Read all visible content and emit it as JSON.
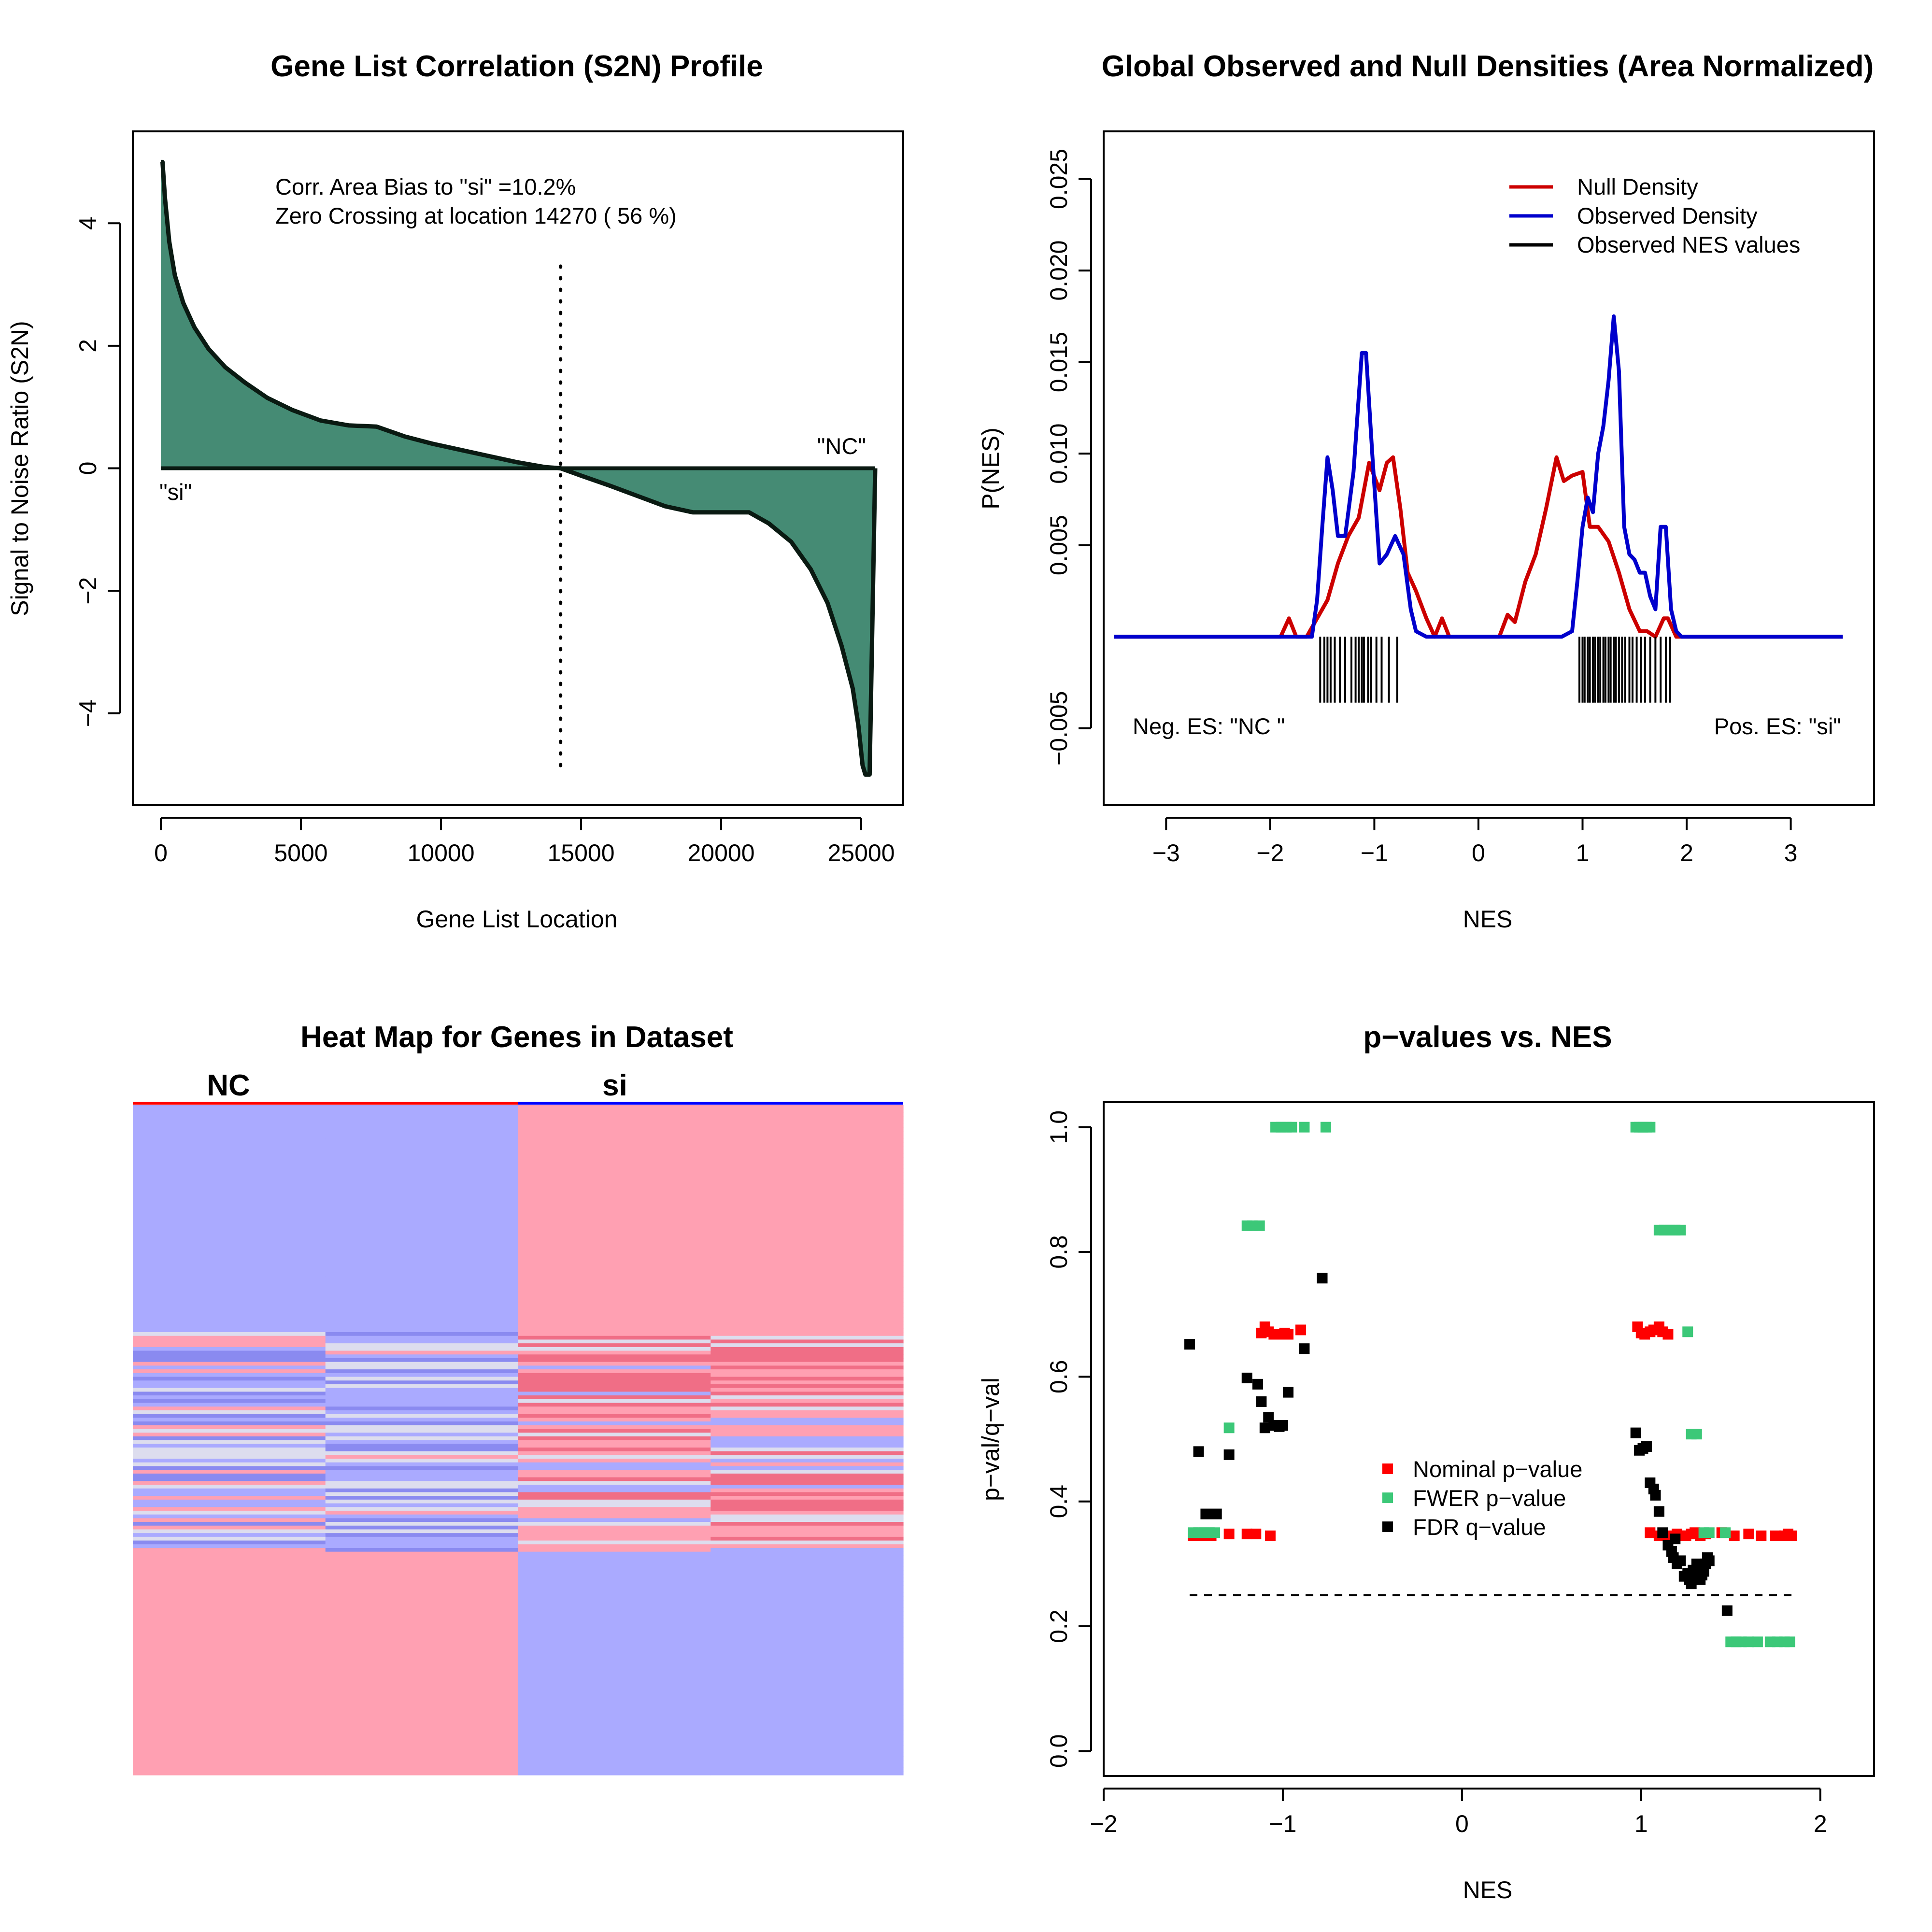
{
  "chart_data": [
    {
      "type": "area",
      "title": "Gene List Correlation (S2N) Profile",
      "xlabel": "Gene List Location",
      "ylabel": "Signal to Noise Ratio (S2N)",
      "xlim": [
        -1000,
        26500
      ],
      "ylim": [
        -5.5,
        5.5
      ],
      "xticks": [
        0,
        5000,
        10000,
        15000,
        20000,
        25000
      ],
      "xtick_labels": [
        "0",
        "5000",
        "10000",
        "15000",
        "20000",
        "25000"
      ],
      "yticks": [
        -4,
        -2,
        0,
        2,
        4
      ],
      "ytick_labels": [
        "−4",
        "−2",
        "0",
        "2",
        "4"
      ],
      "annotations": {
        "bias": "Corr. Area Bias to \"si\" =10.2%",
        "zero_crossing": "Zero Crossing at location  14270  ( 56  %)",
        "left_label": "\"si\"",
        "right_label": "\"NC\""
      },
      "zero_crossing_x": 14270,
      "fill_color": "#458B74",
      "profile": {
        "x": [
          0,
          60,
          150,
          300,
          500,
          800,
          1200,
          1700,
          2300,
          3000,
          3800,
          4700,
          5700,
          6700,
          7700,
          8700,
          9700,
          10700,
          11700,
          12700,
          13700,
          14270,
          15000,
          16000,
          17000,
          18000,
          19000,
          20000,
          21000,
          21700,
          22500,
          23200,
          23800,
          24300,
          24700,
          24900,
          25050,
          25150,
          25250,
          25300,
          25500
        ],
        "y": [
          5.0,
          5.0,
          4.4,
          3.7,
          3.15,
          2.7,
          2.3,
          1.95,
          1.65,
          1.4,
          1.15,
          0.95,
          0.78,
          0.7,
          0.68,
          0.52,
          0.4,
          0.3,
          0.2,
          0.1,
          0.02,
          0.0,
          -0.12,
          -0.28,
          -0.45,
          -0.62,
          -0.72,
          -0.72,
          -0.72,
          -0.9,
          -1.2,
          -1.65,
          -2.2,
          -2.9,
          -3.6,
          -4.2,
          -4.85,
          -5.0,
          -5.0,
          -5.0,
          0.0
        ]
      }
    },
    {
      "type": "line",
      "title": "Global Observed and Null Densities (Area Normalized)",
      "xlabel": "NES",
      "ylabel": "P(NES)",
      "xlim": [
        -3.6,
        3.8
      ],
      "ylim": [
        -0.0092,
        0.0276
      ],
      "xticks": [
        -3,
        -2,
        -1,
        0,
        1,
        2,
        3
      ],
      "xtick_labels": [
        "−3",
        "−2",
        "−1",
        "0",
        "1",
        "2",
        "3"
      ],
      "yticks": [
        -0.005,
        0.005,
        0.01,
        0.015,
        0.02,
        0.025
      ],
      "ytick_labels": [
        "−0.005",
        "0.005",
        "0.010",
        "0.015",
        "0.020",
        "0.025"
      ],
      "legend": [
        "Null Density",
        "Observed Density",
        "Observed NES values"
      ],
      "legend_position": "top-right",
      "annotations": {
        "neg_label": "Neg. ES: \"NC \"",
        "pos_label": "Pos. ES: \"si\""
      },
      "series": [
        {
          "name": "Null Density",
          "color": "#CC0000",
          "x": [
            -3.5,
            -1.9,
            -1.82,
            -1.75,
            -1.65,
            -1.55,
            -1.45,
            -1.35,
            -1.25,
            -1.15,
            -1.05,
            -0.95,
            -0.88,
            -0.82,
            -0.75,
            -0.68,
            -0.6,
            -0.5,
            -0.42,
            -0.35,
            -0.28,
            -0.2,
            0.2,
            0.28,
            0.35,
            0.45,
            0.55,
            0.65,
            0.75,
            0.82,
            0.9,
            1.0,
            1.07,
            1.15,
            1.25,
            1.35,
            1.45,
            1.55,
            1.62,
            1.7,
            1.78,
            1.82,
            1.9,
            3.5
          ],
          "y": [
            0.0,
            0.0,
            0.001,
            0.0,
            0.0,
            0.001,
            0.002,
            0.004,
            0.0055,
            0.0065,
            0.0095,
            0.008,
            0.0095,
            0.0098,
            0.007,
            0.0035,
            0.0025,
            0.001,
            0.0,
            0.001,
            0.0,
            0.0,
            0.0,
            0.0012,
            0.0008,
            0.003,
            0.0045,
            0.007,
            0.0098,
            0.0085,
            0.0088,
            0.009,
            0.006,
            0.006,
            0.0052,
            0.0035,
            0.0015,
            0.0003,
            0.0003,
            0.0,
            0.001,
            0.001,
            0.0,
            0.0
          ]
        },
        {
          "name": "Observed Density",
          "color": "#0000CC",
          "x": [
            -3.5,
            -1.6,
            -1.55,
            -1.5,
            -1.45,
            -1.4,
            -1.35,
            -1.28,
            -1.2,
            -1.12,
            -1.08,
            -1.02,
            -0.95,
            -0.88,
            -0.8,
            -0.72,
            -0.65,
            -0.6,
            -0.5,
            0.8,
            0.9,
            0.95,
            1.0,
            1.05,
            1.1,
            1.15,
            1.2,
            1.25,
            1.3,
            1.35,
            1.4,
            1.45,
            1.5,
            1.55,
            1.6,
            1.65,
            1.7,
            1.75,
            1.8,
            1.85,
            1.9,
            1.95,
            3.5
          ],
          "y": [
            0.0,
            0.0,
            0.002,
            0.006,
            0.0098,
            0.008,
            0.0055,
            0.0055,
            0.009,
            0.0155,
            0.0155,
            0.01,
            0.004,
            0.0045,
            0.0055,
            0.0045,
            0.0015,
            0.0003,
            0.0,
            0.0,
            0.0003,
            0.003,
            0.006,
            0.0076,
            0.0068,
            0.01,
            0.0115,
            0.014,
            0.0175,
            0.0145,
            0.006,
            0.0045,
            0.0042,
            0.0035,
            0.0035,
            0.0022,
            0.0015,
            0.006,
            0.006,
            0.0015,
            0.0003,
            0.0,
            0.0
          ]
        }
      ],
      "rug_nes": [
        -1.52,
        -1.48,
        -1.45,
        -1.42,
        -1.38,
        -1.33,
        -1.28,
        -1.22,
        -1.18,
        -1.15,
        -1.12,
        -1.1,
        -1.06,
        -1.03,
        -0.98,
        -0.93,
        -0.86,
        -0.78,
        0.97,
        1.0,
        1.02,
        1.05,
        1.07,
        1.1,
        1.12,
        1.15,
        1.17,
        1.2,
        1.22,
        1.25,
        1.27,
        1.3,
        1.32,
        1.35,
        1.38,
        1.41,
        1.45,
        1.48,
        1.52,
        1.56,
        1.6,
        1.65,
        1.7,
        1.75,
        1.8,
        1.84
      ]
    },
    {
      "type": "heatmap",
      "title": "Heat Map for Genes in Dataset",
      "groups": [
        "NC",
        "si"
      ],
      "group_colors": [
        "#FF0000",
        "#0000FF"
      ],
      "columns": 4,
      "row_count": 180,
      "colors": {
        "high": "#FFA0B2",
        "low": "#AAAAFF",
        "mid": "#DDDDEE",
        "strong_high": "#F06E86",
        "strong_low": "#8A8AF0"
      }
    },
    {
      "type": "scatter",
      "title": "p−values vs. NES",
      "xlabel": "NES",
      "ylabel": "p−val/q−val",
      "xlim": [
        -2.0,
        2.3
      ],
      "ylim": [
        -0.04,
        1.04
      ],
      "xticks": [
        -2,
        -1,
        0,
        1,
        2
      ],
      "xtick_labels": [
        "−2",
        "−1",
        "0",
        "1",
        "2"
      ],
      "yticks": [
        0.0,
        0.2,
        0.4,
        0.6,
        0.8,
        1.0
      ],
      "ytick_labels": [
        "0.0",
        "0.2",
        "0.4",
        "0.6",
        "0.8",
        "1.0"
      ],
      "legend": [
        "Nominal p−value",
        "FWER p−value",
        "FDR q−value"
      ],
      "legend_position": "center",
      "threshold": {
        "y": 0.25,
        "x_from": -1.52,
        "x_to": 1.84
      },
      "series": [
        {
          "name": "Nominal p−value",
          "color": "#FF0000",
          "x": [
            -1.5,
            -1.48,
            -1.46,
            -1.44,
            -1.42,
            -1.4,
            -1.3,
            -1.2,
            -1.15,
            -1.12,
            -1.1,
            -1.08,
            -1.05,
            -1.03,
            -1.01,
            -0.99,
            -0.97,
            -0.9,
            -1.07,
            0.98,
            1.0,
            1.02,
            1.05,
            1.07,
            1.1,
            1.12,
            1.15,
            1.05,
            1.1,
            1.15,
            1.2,
            1.22,
            1.25,
            1.28,
            1.3,
            1.33,
            1.36,
            1.45,
            1.52,
            1.6,
            1.67,
            1.75,
            1.8,
            1.82,
            1.84
          ],
          "y": [
            0.345,
            0.345,
            0.345,
            0.345,
            0.345,
            0.345,
            0.348,
            0.348,
            0.348,
            0.67,
            0.68,
            0.672,
            0.668,
            0.668,
            0.668,
            0.67,
            0.668,
            0.675,
            0.345,
            0.68,
            0.67,
            0.668,
            0.672,
            0.675,
            0.68,
            0.672,
            0.668,
            0.35,
            0.345,
            0.345,
            0.348,
            0.345,
            0.345,
            0.348,
            0.35,
            0.345,
            0.348,
            0.35,
            0.345,
            0.348,
            0.345,
            0.345,
            0.345,
            0.348,
            0.345
          ]
        },
        {
          "name": "FWER p−value",
          "color": "#3CC878",
          "x": [
            -1.5,
            -1.47,
            -1.44,
            -1.41,
            -1.38,
            -1.3,
            -1.2,
            -1.17,
            -1.13,
            -1.04,
            -1.01,
            -0.98,
            -0.95,
            -0.88,
            -0.76,
            0.97,
            0.99,
            1.01,
            1.03,
            1.05,
            1.1,
            1.13,
            1.16,
            1.19,
            1.22,
            1.26,
            1.28,
            1.31,
            1.35,
            1.38,
            1.47,
            1.5,
            1.53,
            1.56,
            1.6,
            1.65,
            1.72,
            1.76,
            1.8,
            1.83
          ],
          "y": [
            0.35,
            0.35,
            0.35,
            0.35,
            0.35,
            0.518,
            0.842,
            0.842,
            0.842,
            1.0,
            1.0,
            1.0,
            1.0,
            1.0,
            1.0,
            1.0,
            1.0,
            1.0,
            1.0,
            1.0,
            0.835,
            0.835,
            0.835,
            0.835,
            0.835,
            0.672,
            0.508,
            0.508,
            0.35,
            0.35,
            0.35,
            0.175,
            0.175,
            0.175,
            0.175,
            0.175,
            0.175,
            0.175,
            0.175,
            0.175
          ]
        },
        {
          "name": "FDR q−value",
          "color": "#000000",
          "x": [
            -1.52,
            -1.47,
            -1.43,
            -1.4,
            -1.37,
            -1.3,
            -1.2,
            -1.14,
            -1.12,
            -1.1,
            -1.08,
            -1.05,
            -1.02,
            -1.0,
            -0.97,
            -0.78,
            -0.88,
            0.97,
            0.99,
            1.01,
            1.03,
            1.05,
            1.07,
            1.08,
            1.1,
            1.12,
            1.15,
            1.17,
            1.18,
            1.19,
            1.2,
            1.22,
            1.24,
            1.26,
            1.27,
            1.28,
            1.29,
            1.3,
            1.31,
            1.32,
            1.33,
            1.34,
            1.35,
            1.36,
            1.37,
            1.38,
            1.48
          ],
          "y": [
            0.652,
            0.48,
            0.38,
            0.38,
            0.38,
            0.475,
            0.598,
            0.588,
            0.56,
            0.518,
            0.535,
            0.522,
            0.52,
            0.522,
            0.575,
            0.758,
            0.645,
            0.51,
            0.482,
            0.485,
            0.488,
            0.43,
            0.42,
            0.41,
            0.384,
            0.35,
            0.33,
            0.32,
            0.31,
            0.34,
            0.3,
            0.305,
            0.28,
            0.285,
            0.275,
            0.268,
            0.29,
            0.283,
            0.3,
            0.29,
            0.275,
            0.282,
            0.288,
            0.3,
            0.31,
            0.305,
            0.225
          ]
        }
      ]
    }
  ]
}
